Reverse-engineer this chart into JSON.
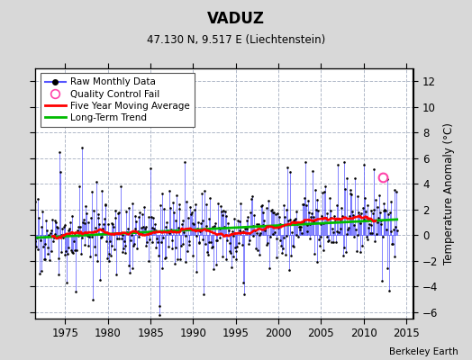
{
  "title": "VADUZ",
  "subtitle": "47.130 N, 9.517 E (Liechtenstein)",
  "ylabel": "Temperature Anomaly (°C)",
  "credit": "Berkeley Earth",
  "xlim": [
    1971.5,
    2015.8
  ],
  "ylim": [
    -6.5,
    13
  ],
  "yticks": [
    -6,
    -4,
    -2,
    0,
    2,
    4,
    6,
    8,
    10,
    12
  ],
  "xticks": [
    1975,
    1980,
    1985,
    1990,
    1995,
    2000,
    2005,
    2010,
    2015
  ],
  "bg_color": "#d8d8d8",
  "plot_bg_color": "#ffffff",
  "grid_color": "#b0b8c8",
  "raw_line_color": "#5555ff",
  "raw_dot_color": "#000000",
  "ma_color": "#ff0000",
  "trend_color": "#00bb00",
  "qc_color": "#ff44aa",
  "qc_x": 2012.25,
  "qc_y": 4.5,
  "raw_seed": 17,
  "n_months": 516,
  "start_year": 1971.0
}
